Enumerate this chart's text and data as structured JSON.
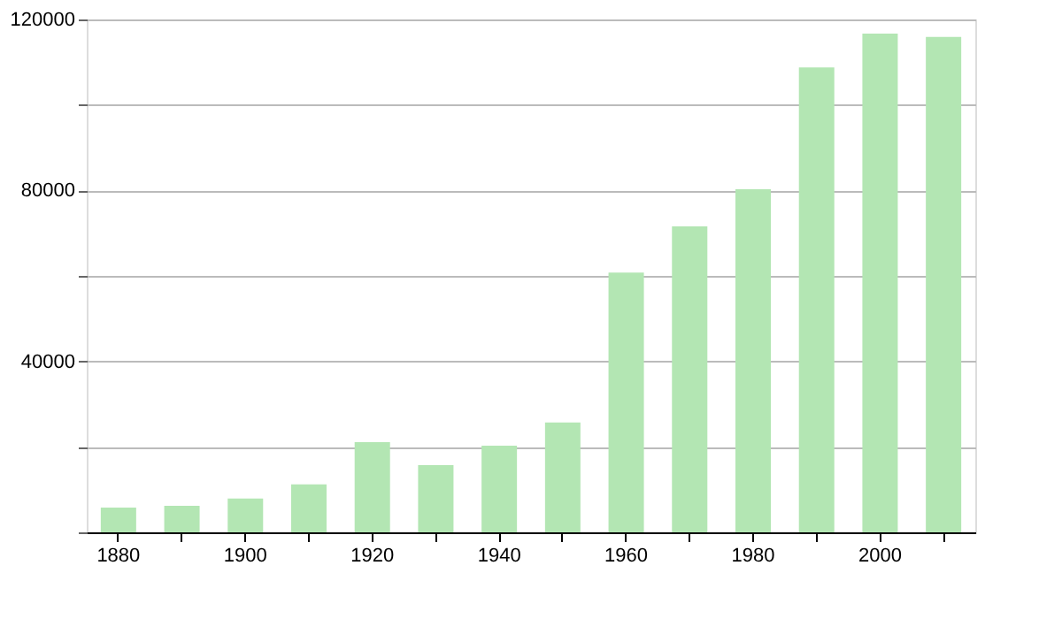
{
  "chart_data": {
    "type": "bar",
    "categories": [
      "1880",
      null,
      "1900",
      null,
      "1920",
      null,
      "1940",
      null,
      "1960",
      null,
      "1980",
      null,
      "2000",
      null
    ],
    "values": [
      5800,
      6200,
      7900,
      11200,
      21100,
      15700,
      20300,
      25700,
      60800,
      71600,
      80300,
      108800,
      116700,
      115900
    ],
    "color": "#b3e6b3",
    "ylim": [
      0,
      120000
    ],
    "yticks": [
      {
        "value": 0,
        "label": null
      },
      {
        "value": 20000,
        "label": null
      },
      40000,
      {
        "value": 60000,
        "label": null
      },
      80000,
      {
        "value": 100000,
        "label": null
      },
      120000
    ],
    "grid": "y"
  }
}
